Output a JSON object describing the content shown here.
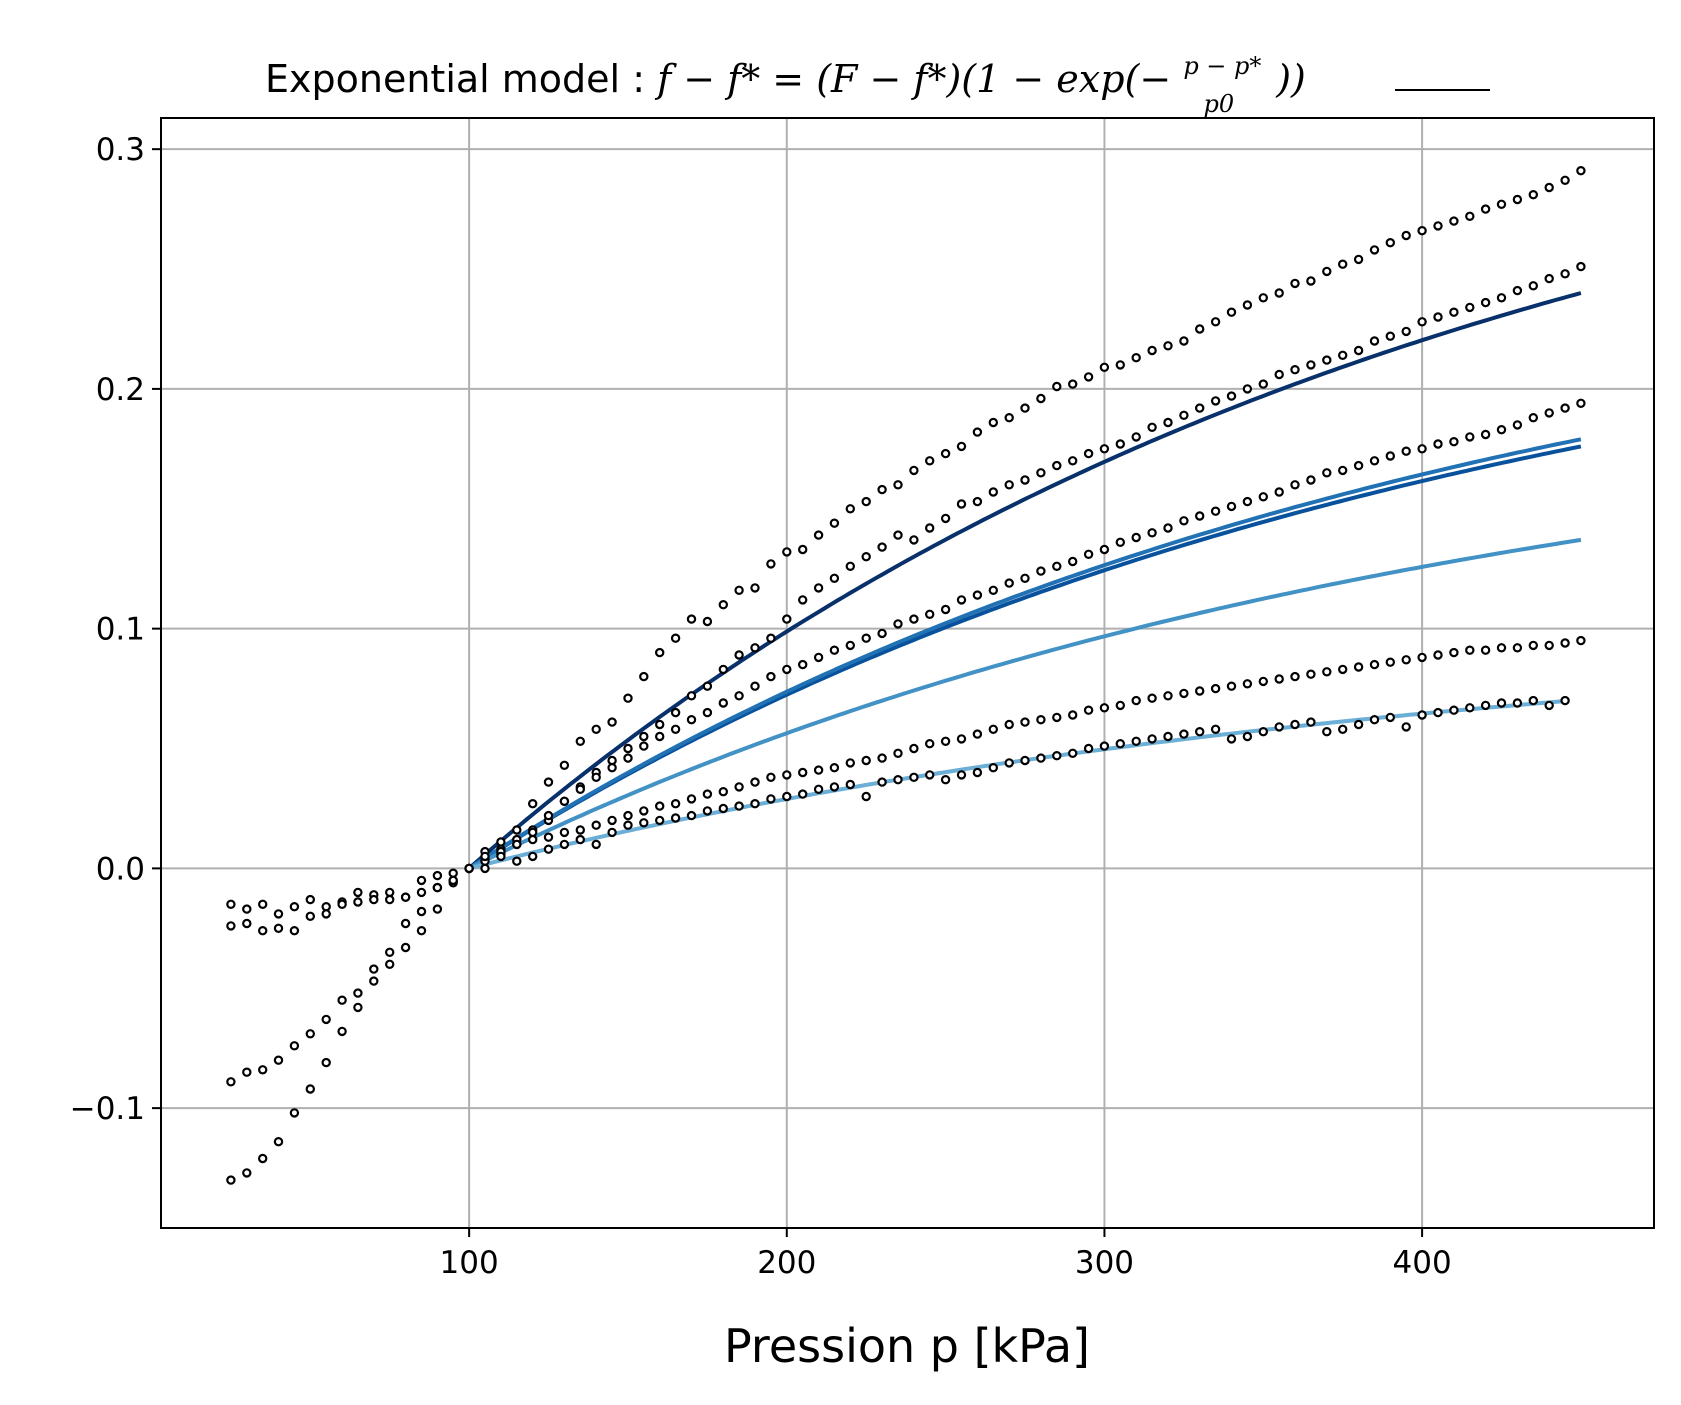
{
  "chart_data": {
    "type": "scatter",
    "title_parts": {
      "prefix": "Exponential model : ",
      "lhs": "f − f* = (F − f*)(1 − exp(−",
      "frac_num": "p − p*",
      "frac_den": "p0",
      "suffix": "))"
    },
    "xlabel": "Pression p [kPa]",
    "ylabel": "",
    "xlim": [
      3,
      473
    ],
    "ylim": [
      -0.15,
      0.313
    ],
    "xticks": [
      100,
      200,
      300,
      400
    ],
    "xtick_labels": [
      "100",
      "200",
      "300",
      "400"
    ],
    "yticks": [
      -0.1,
      0.0,
      0.1,
      0.2,
      0.3
    ],
    "ytick_labels": [
      "−0.1",
      "0.0",
      "0.1",
      "0.2",
      "0.3"
    ],
    "grid": true,
    "legend": "none",
    "p_star": 100,
    "fit_curves": [
      {
        "color": "#08306b",
        "x_end": 450,
        "y_end": 0.24,
        "p0": 300
      },
      {
        "color": "#08519c",
        "x_end": 450,
        "y_end": 0.176,
        "p0": 300
      },
      {
        "color": "#2171b5",
        "x_end": 450,
        "y_end": 0.179,
        "p0": 300
      },
      {
        "color": "#4292c6",
        "x_end": 450,
        "y_end": 0.137,
        "p0": 300
      },
      {
        "color": "#6baed6",
        "x_end": 447,
        "y_end": 0.07,
        "p0": 300
      }
    ],
    "scatter_series": [
      {
        "name": "",
        "x": [
          25,
          30,
          35,
          40,
          45,
          50,
          55,
          60,
          65,
          70,
          75,
          80,
          85,
          90,
          95,
          100,
          105,
          110,
          115,
          120,
          125,
          130,
          135,
          140,
          145,
          150,
          155,
          160,
          165,
          170,
          175,
          180,
          185,
          190,
          195,
          200,
          205,
          210,
          215,
          220,
          225,
          230,
          235,
          240,
          245,
          250,
          255,
          260,
          265,
          270,
          275,
          280,
          285,
          290,
          295,
          300,
          305,
          310,
          315,
          320,
          325,
          330,
          335,
          340,
          345,
          350,
          355,
          360,
          365,
          370,
          375,
          380,
          385,
          390,
          395,
          400,
          405,
          410,
          415,
          420,
          425,
          430,
          435,
          440,
          445,
          450
        ],
        "y": [
          -0.13,
          -0.127,
          -0.121,
          -0.114,
          -0.102,
          -0.092,
          -0.081,
          -0.068,
          -0.058,
          -0.042,
          -0.035,
          -0.023,
          -0.018,
          -0.008,
          -0.005,
          0.0,
          0.007,
          0.011,
          0.016,
          0.027,
          0.036,
          0.043,
          0.053,
          0.058,
          0.061,
          0.071,
          0.08,
          0.09,
          0.096,
          0.104,
          0.103,
          0.11,
          0.116,
          0.117,
          0.127,
          0.132,
          0.133,
          0.139,
          0.144,
          0.15,
          0.153,
          0.158,
          0.16,
          0.166,
          0.17,
          0.173,
          0.176,
          0.182,
          0.186,
          0.188,
          0.192,
          0.196,
          0.201,
          0.202,
          0.205,
          0.209,
          0.21,
          0.213,
          0.216,
          0.218,
          0.22,
          0.225,
          0.228,
          0.232,
          0.235,
          0.238,
          0.24,
          0.244,
          0.245,
          0.249,
          0.252,
          0.254,
          0.258,
          0.261,
          0.264,
          0.266,
          0.268,
          0.27,
          0.272,
          0.275,
          0.277,
          0.279,
          0.281,
          0.284,
          0.287,
          0.291
        ]
      },
      {
        "name": "",
        "x": [
          25,
          30,
          35,
          40,
          45,
          50,
          55,
          60,
          65,
          70,
          75,
          80,
          85,
          90,
          95,
          100,
          105,
          110,
          115,
          120,
          125,
          130,
          135,
          140,
          145,
          150,
          155,
          160,
          165,
          170,
          175,
          180,
          185,
          190,
          195,
          200,
          205,
          210,
          215,
          220,
          225,
          230,
          235,
          240,
          245,
          250,
          255,
          260,
          265,
          270,
          275,
          280,
          285,
          290,
          295,
          300,
          305,
          310,
          315,
          320,
          325,
          330,
          335,
          340,
          345,
          350,
          355,
          360,
          365,
          370,
          375,
          380,
          385,
          390,
          395,
          400,
          405,
          410,
          415,
          420,
          425,
          430,
          435,
          440,
          445,
          450
        ],
        "y": [
          -0.089,
          -0.085,
          -0.084,
          -0.08,
          -0.074,
          -0.069,
          -0.063,
          -0.055,
          -0.052,
          -0.047,
          -0.04,
          -0.033,
          -0.026,
          -0.017,
          -0.006,
          0.0,
          0.004,
          0.008,
          0.012,
          0.016,
          0.02,
          0.028,
          0.034,
          0.04,
          0.045,
          0.05,
          0.055,
          0.06,
          0.065,
          0.072,
          0.076,
          0.083,
          0.089,
          0.092,
          0.096,
          0.104,
          0.112,
          0.117,
          0.121,
          0.126,
          0.13,
          0.134,
          0.139,
          0.137,
          0.142,
          0.146,
          0.152,
          0.153,
          0.157,
          0.16,
          0.162,
          0.165,
          0.168,
          0.17,
          0.173,
          0.175,
          0.177,
          0.18,
          0.184,
          0.186,
          0.189,
          0.192,
          0.195,
          0.197,
          0.2,
          0.202,
          0.206,
          0.208,
          0.21,
          0.212,
          0.214,
          0.216,
          0.22,
          0.222,
          0.224,
          0.228,
          0.23,
          0.232,
          0.234,
          0.236,
          0.238,
          0.241,
          0.243,
          0.246,
          0.248,
          0.251
        ]
      },
      {
        "name": "",
        "x": [
          100,
          105,
          110,
          115,
          120,
          125,
          130,
          135,
          140,
          145,
          150,
          155,
          160,
          165,
          170,
          175,
          180,
          185,
          190,
          195,
          200,
          205,
          210,
          215,
          220,
          225,
          230,
          235,
          240,
          245,
          250,
          255,
          260,
          265,
          270,
          275,
          280,
          285,
          290,
          295,
          300,
          305,
          310,
          315,
          320,
          325,
          330,
          335,
          340,
          345,
          350,
          355,
          360,
          365,
          370,
          375,
          380,
          385,
          390,
          395,
          400,
          405,
          410,
          415,
          420,
          425,
          430,
          435,
          440,
          445,
          450
        ],
        "y": [
          0.0,
          0.003,
          0.006,
          0.01,
          0.015,
          0.022,
          0.028,
          0.033,
          0.038,
          0.042,
          0.046,
          0.051,
          0.055,
          0.058,
          0.062,
          0.065,
          0.069,
          0.072,
          0.076,
          0.08,
          0.083,
          0.085,
          0.088,
          0.091,
          0.093,
          0.096,
          0.098,
          0.102,
          0.104,
          0.106,
          0.108,
          0.112,
          0.114,
          0.116,
          0.119,
          0.121,
          0.124,
          0.126,
          0.128,
          0.131,
          0.133,
          0.136,
          0.138,
          0.14,
          0.142,
          0.145,
          0.147,
          0.149,
          0.151,
          0.153,
          0.155,
          0.157,
          0.16,
          0.162,
          0.165,
          0.166,
          0.168,
          0.17,
          0.172,
          0.174,
          0.175,
          0.177,
          0.178,
          0.18,
          0.181,
          0.183,
          0.185,
          0.188,
          0.19,
          0.192,
          0.194
        ]
      },
      {
        "name": "",
        "x": [
          25,
          30,
          35,
          40,
          45,
          50,
          55,
          60,
          65,
          70,
          75,
          80,
          85,
          90,
          95,
          100,
          105,
          110,
          115,
          120,
          125,
          130,
          135,
          140,
          145,
          150,
          155,
          160,
          165,
          170,
          175,
          180,
          185,
          190,
          195,
          200,
          205,
          210,
          215,
          220,
          225,
          230,
          235,
          240,
          245,
          250,
          255,
          260,
          265,
          270,
          275,
          280,
          285,
          290,
          295,
          300,
          305,
          310,
          315,
          320,
          325,
          330,
          335,
          340,
          345,
          350,
          355,
          360,
          365,
          370,
          375,
          380,
          385,
          390,
          395,
          400,
          405,
          410,
          415,
          420,
          425,
          430,
          435,
          440,
          445,
          450
        ],
        "y": [
          -0.015,
          -0.017,
          -0.015,
          -0.019,
          -0.016,
          -0.013,
          -0.016,
          -0.014,
          -0.01,
          -0.011,
          -0.01,
          -0.012,
          -0.005,
          -0.003,
          -0.002,
          0.0,
          0.005,
          0.007,
          0.01,
          0.012,
          0.013,
          0.015,
          0.016,
          0.018,
          0.02,
          0.022,
          0.024,
          0.026,
          0.027,
          0.029,
          0.031,
          0.032,
          0.034,
          0.036,
          0.038,
          0.039,
          0.04,
          0.041,
          0.042,
          0.044,
          0.045,
          0.046,
          0.048,
          0.05,
          0.052,
          0.053,
          0.054,
          0.056,
          0.058,
          0.06,
          0.061,
          0.062,
          0.063,
          0.064,
          0.066,
          0.067,
          0.068,
          0.07,
          0.071,
          0.072,
          0.073,
          0.074,
          0.075,
          0.076,
          0.077,
          0.078,
          0.079,
          0.08,
          0.081,
          0.082,
          0.083,
          0.084,
          0.085,
          0.086,
          0.087,
          0.088,
          0.089,
          0.09,
          0.091,
          0.091,
          0.092,
          0.092,
          0.093,
          0.093,
          0.094,
          0.095
        ]
      },
      {
        "name": "",
        "x": [
          25,
          30,
          35,
          40,
          45,
          50,
          55,
          60,
          65,
          70,
          75,
          80,
          85,
          90,
          95,
          100,
          105,
          110,
          115,
          120,
          125,
          130,
          135,
          140,
          145,
          150,
          155,
          160,
          165,
          170,
          175,
          180,
          185,
          190,
          195,
          200,
          205,
          210,
          215,
          220,
          225,
          230,
          235,
          240,
          245,
          250,
          255,
          260,
          265,
          270,
          275,
          280,
          285,
          290,
          295,
          300,
          305,
          310,
          315,
          320,
          325,
          330,
          335,
          340,
          345,
          350,
          355,
          360,
          365,
          370,
          375,
          380,
          385,
          390,
          395,
          400,
          405,
          410,
          415,
          420,
          425,
          430,
          435,
          440,
          445
        ],
        "y": [
          -0.024,
          -0.023,
          -0.026,
          -0.025,
          -0.026,
          -0.02,
          -0.019,
          -0.015,
          -0.014,
          -0.013,
          -0.013,
          -0.012,
          -0.01,
          -0.008,
          -0.005,
          0.0,
          0.0,
          0.005,
          0.003,
          0.005,
          0.008,
          0.01,
          0.012,
          0.01,
          0.015,
          0.018,
          0.019,
          0.02,
          0.021,
          0.022,
          0.024,
          0.025,
          0.026,
          0.027,
          0.029,
          0.03,
          0.031,
          0.033,
          0.034,
          0.035,
          0.03,
          0.036,
          0.037,
          0.038,
          0.039,
          0.037,
          0.039,
          0.04,
          0.042,
          0.044,
          0.045,
          0.046,
          0.047,
          0.048,
          0.05,
          0.051,
          0.052,
          0.053,
          0.054,
          0.055,
          0.056,
          0.057,
          0.058,
          0.054,
          0.055,
          0.057,
          0.059,
          0.06,
          0.061,
          0.057,
          0.058,
          0.06,
          0.062,
          0.063,
          0.059,
          0.064,
          0.065,
          0.066,
          0.067,
          0.068,
          0.069,
          0.069,
          0.07,
          0.068,
          0.07
        ]
      }
    ],
    "marker_color": "#000000"
  }
}
